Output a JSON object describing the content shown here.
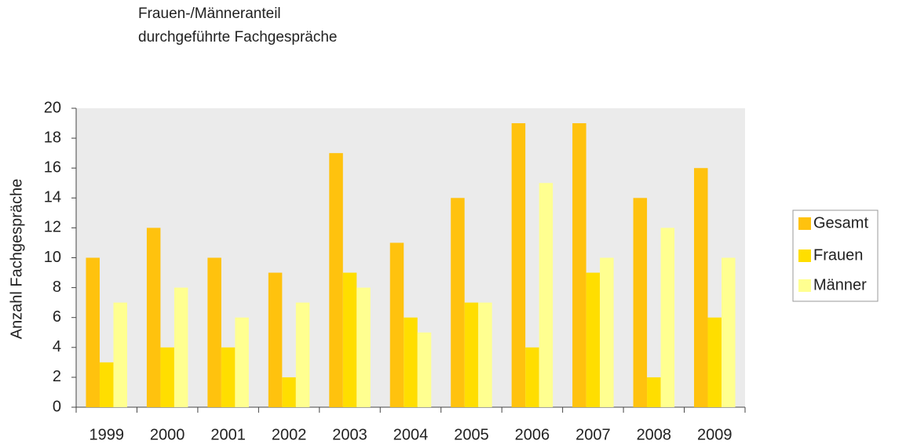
{
  "chart_data": {
    "type": "bar",
    "title": "Frauen-/Männeranteil",
    "subtitle": "durchgeführte Fachgespräche",
    "y_label": "Anzahl Fachgespräche",
    "categories": [
      "1999",
      "2000",
      "2001",
      "2002",
      "2003",
      "2004",
      "2005",
      "2006",
      "2007",
      "2008",
      "2009"
    ],
    "series": [
      {
        "name": "Gesamt",
        "color": "#ffc20e",
        "values": [
          10,
          12,
          10,
          9,
          17,
          11,
          14,
          19,
          19,
          14,
          16
        ]
      },
      {
        "name": "Frauen",
        "color": "#ffde00",
        "values": [
          3,
          4,
          4,
          2,
          9,
          6,
          7,
          4,
          9,
          2,
          6
        ]
      },
      {
        "name": "Männer",
        "color": "#ffff90",
        "values": [
          7,
          8,
          6,
          7,
          8,
          5,
          7,
          15,
          10,
          12,
          10
        ]
      }
    ],
    "ylim": [
      0,
      20
    ],
    "yticks": [
      0,
      2,
      4,
      6,
      8,
      10,
      12,
      14,
      16,
      18,
      20
    ],
    "grid": false,
    "legend": "right"
  }
}
